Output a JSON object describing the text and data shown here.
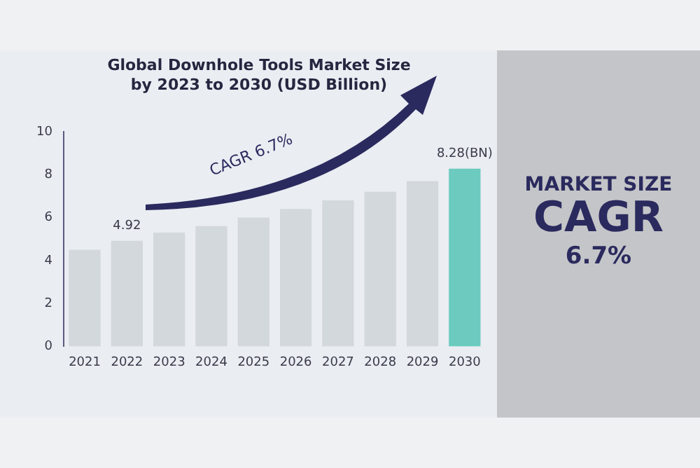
{
  "chart_data": {
    "type": "bar",
    "title": "Global Downhole Tools Market Size by 2023 to 2030 (USD Billion)",
    "categories": [
      "2021",
      "2022",
      "2023",
      "2024",
      "2025",
      "2026",
      "2027",
      "2028",
      "2029",
      "2030"
    ],
    "values": [
      4.5,
      4.92,
      5.3,
      5.6,
      6.0,
      6.4,
      6.8,
      7.2,
      7.7,
      8.28
    ],
    "colors": [
      "#d3d8dd",
      "#d3d8dd",
      "#d3d8dd",
      "#d3d8dd",
      "#d3d8dd",
      "#d3d8dd",
      "#d3d8dd",
      "#d3d8dd",
      "#d3d8dd",
      "#6ccabf"
    ],
    "value_labels": [
      null,
      "4.92",
      null,
      null,
      null,
      null,
      null,
      null,
      null,
      "8.28(BN)"
    ],
    "ylim": [
      0,
      10
    ],
    "yticks": [
      0,
      2,
      4,
      6,
      8,
      10
    ],
    "grid": false,
    "legend": false,
    "annotations": [
      "CAGR 6.7%",
      "MARKET SIZE",
      "CAGR",
      "6.7%"
    ]
  }
}
